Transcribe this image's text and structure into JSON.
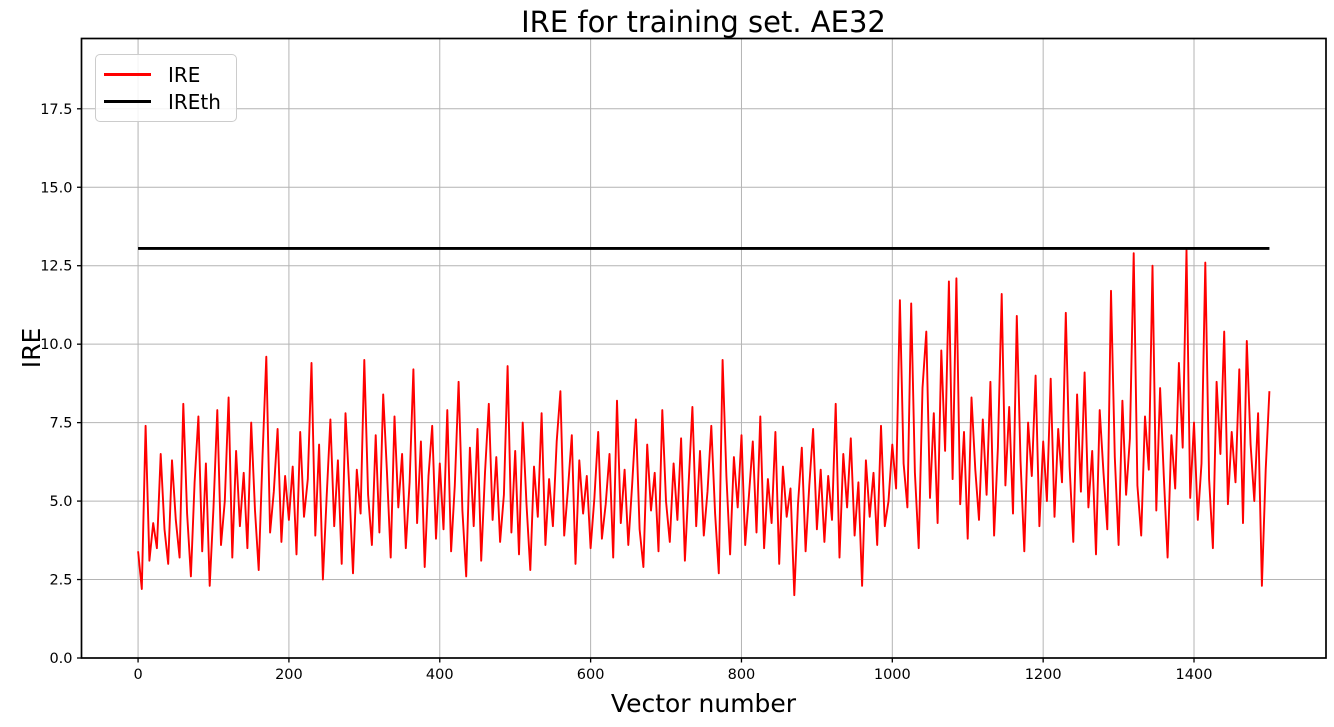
{
  "chart_data": {
    "type": "line",
    "title": "IRE for training set. AE32",
    "xlabel": "Vector number",
    "ylabel": "IRE",
    "xlim": [
      -75,
      1575
    ],
    "ylim": [
      0,
      19.74
    ],
    "xtick_values": [
      0,
      200,
      400,
      600,
      800,
      1000,
      1200,
      1400
    ],
    "xtick_labels": [
      "0",
      "200",
      "400",
      "600",
      "800",
      "1000",
      "1200",
      "1400"
    ],
    "ytick_values": [
      0,
      2.5,
      5,
      7.5,
      10,
      12.5,
      15,
      17.5
    ],
    "ytick_labels": [
      "0.0",
      "2.5",
      "5.0",
      "7.5",
      "10.0",
      "12.5",
      "15.0",
      "17.5"
    ],
    "grid": true,
    "colors": {
      "background": "#ffffff",
      "grid": "#b4b4b4",
      "spine": "#000000",
      "tick_label": "#000000",
      "ire": "#ff0000",
      "ireth": "#000000"
    },
    "legend": {
      "position": "upper-left",
      "items": [
        {
          "label": "IRE",
          "color": "#ff0000"
        },
        {
          "label": "IREth",
          "color": "#000000"
        }
      ]
    },
    "series": [
      {
        "name": "IRE",
        "type": "line",
        "color": "#ff0000",
        "x_start": 0,
        "x_step": 5,
        "values": [
          3.4,
          2.2,
          7.4,
          3.1,
          4.3,
          3.5,
          6.5,
          4.1,
          3.0,
          6.3,
          4.4,
          3.2,
          8.1,
          4.6,
          2.6,
          5.6,
          7.7,
          3.4,
          6.2,
          2.3,
          4.8,
          7.9,
          3.6,
          5.0,
          8.3,
          3.2,
          6.6,
          4.2,
          5.9,
          3.5,
          7.5,
          4.7,
          2.8,
          6.4,
          9.6,
          4.0,
          5.3,
          7.3,
          3.7,
          5.8,
          4.4,
          6.1,
          3.3,
          7.2,
          4.5,
          5.7,
          9.4,
          3.9,
          6.8,
          2.5,
          5.1,
          7.6,
          4.2,
          6.3,
          3.0,
          7.8,
          5.4,
          2.7,
          6.0,
          4.6,
          9.5,
          5.2,
          3.6,
          7.1,
          4.0,
          8.4,
          5.9,
          3.2,
          7.7,
          4.8,
          6.5,
          3.5,
          5.6,
          9.2,
          4.3,
          6.9,
          2.9,
          5.8,
          7.4,
          3.8,
          6.2,
          4.1,
          7.9,
          3.4,
          5.5,
          8.8,
          4.7,
          2.6,
          6.7,
          4.2,
          7.3,
          3.1,
          5.9,
          8.1,
          4.4,
          6.4,
          3.7,
          5.2,
          9.3,
          4.0,
          6.6,
          3.3,
          7.5,
          4.9,
          2.8,
          6.1,
          4.5,
          7.8,
          3.6,
          5.7,
          4.2,
          6.9,
          8.5,
          3.9,
          5.4,
          7.1,
          3.0,
          6.3,
          4.6,
          5.8,
          3.5,
          5.1,
          7.2,
          3.8,
          4.9,
          6.5,
          3.2,
          8.2,
          4.3,
          6.0,
          3.6,
          5.5,
          7.6,
          4.1,
          2.9,
          6.8,
          4.7,
          5.9,
          3.4,
          7.9,
          5.0,
          3.7,
          6.2,
          4.4,
          7.0,
          3.1,
          5.6,
          8.0,
          4.2,
          6.6,
          3.9,
          5.3,
          7.4,
          4.6,
          2.7,
          9.5,
          5.8,
          3.3,
          6.4,
          4.8,
          7.1,
          3.6,
          5.2,
          6.9,
          4.0,
          7.7,
          3.5,
          5.7,
          4.3,
          7.2,
          3.0,
          6.1,
          4.5,
          5.4,
          2.0,
          4.9,
          6.7,
          3.4,
          5.5,
          7.3,
          4.1,
          6.0,
          3.7,
          5.8,
          4.4,
          8.1,
          3.2,
          6.5,
          4.8,
          7.0,
          3.9,
          5.6,
          2.3,
          6.3,
          4.5,
          5.9,
          3.6,
          7.4,
          4.2,
          5.0,
          6.8,
          5.4,
          11.4,
          6.2,
          4.8,
          11.3,
          5.9,
          3.5,
          8.6,
          10.4,
          5.1,
          7.8,
          4.3,
          9.8,
          6.6,
          12.0,
          5.7,
          12.1,
          4.9,
          7.2,
          3.8,
          8.3,
          6.0,
          4.4,
          7.6,
          5.2,
          8.8,
          3.9,
          6.7,
          11.6,
          5.5,
          8.0,
          4.6,
          10.9,
          6.3,
          3.4,
          7.5,
          5.8,
          9.0,
          4.2,
          6.9,
          5.0,
          8.9,
          4.5,
          7.3,
          5.6,
          11.0,
          6.1,
          3.7,
          8.4,
          5.3,
          9.1,
          4.8,
          6.6,
          3.3,
          7.9,
          5.9,
          4.1,
          11.7,
          6.4,
          3.6,
          8.2,
          5.2,
          7.0,
          12.9,
          5.5,
          3.9,
          7.7,
          6.0,
          12.5,
          4.7,
          8.6,
          5.8,
          3.2,
          7.1,
          5.4,
          9.4,
          6.7,
          13.0,
          5.1,
          7.5,
          4.4,
          6.2,
          12.6,
          5.7,
          3.5,
          8.8,
          6.5,
          10.4,
          4.9,
          7.2,
          5.6,
          9.2,
          4.3,
          10.1,
          6.8,
          5.0,
          7.8,
          2.3,
          6.0,
          8.5
        ]
      },
      {
        "name": "IREth",
        "type": "hline",
        "color": "#000000",
        "y": 13.05,
        "x_range": [
          0,
          1500
        ]
      }
    ]
  }
}
